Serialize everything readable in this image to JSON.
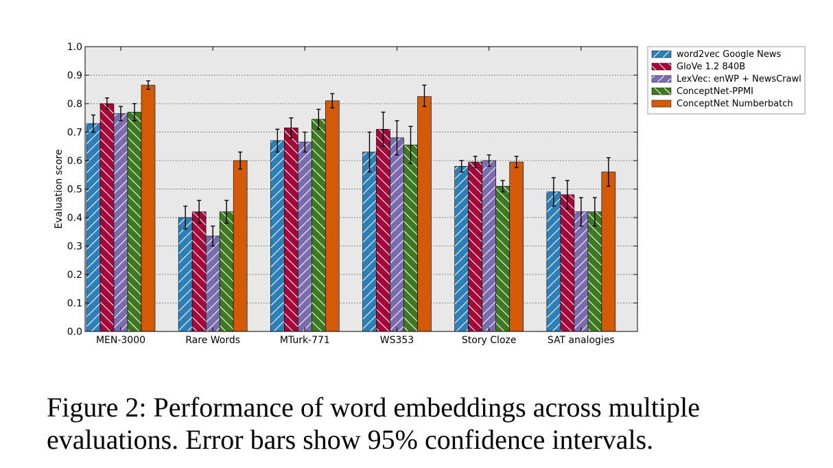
{
  "chart_data": {
    "type": "bar",
    "title": "",
    "xlabel": "",
    "ylabel": "Evaluation score",
    "ylim": [
      0,
      1.0
    ],
    "yticks": [
      "0.0",
      "0.1",
      "0.2",
      "0.3",
      "0.4",
      "0.5",
      "0.6",
      "0.7",
      "0.8",
      "0.9",
      "1.0"
    ],
    "grid": "horizontal dotted",
    "legend_position": "right, outside plot",
    "categories": [
      "MEN-3000",
      "Rare Words",
      "MTurk-771",
      "WS353",
      "Story Cloze",
      "SAT analogies"
    ],
    "series": [
      {
        "name": "word2vec Google News",
        "color": "#2c7fb8",
        "hatch": "/",
        "values": [
          0.73,
          0.4,
          0.67,
          0.63,
          0.58,
          0.49
        ],
        "ci": [
          [
            0.7,
            0.76
          ],
          [
            0.36,
            0.44
          ],
          [
            0.63,
            0.71
          ],
          [
            0.56,
            0.7
          ],
          [
            0.56,
            0.6
          ],
          [
            0.44,
            0.54
          ]
        ]
      },
      {
        "name": "GloVe 1.2 840B",
        "color": "#a6053a",
        "hatch": "\\",
        "values": [
          0.8,
          0.42,
          0.715,
          0.71,
          0.595,
          0.48
        ],
        "ci": [
          [
            0.78,
            0.82
          ],
          [
            0.38,
            0.46
          ],
          [
            0.68,
            0.75
          ],
          [
            0.65,
            0.77
          ],
          [
            0.575,
            0.615
          ],
          [
            0.43,
            0.53
          ]
        ]
      },
      {
        "name": "LexVec: enWP + NewsCrawl",
        "color": "#7b6bb0",
        "hatch": "//",
        "values": [
          0.765,
          0.335,
          0.665,
          0.68,
          0.6,
          0.42
        ],
        "ci": [
          [
            0.74,
            0.79
          ],
          [
            0.3,
            0.37
          ],
          [
            0.63,
            0.7
          ],
          [
            0.62,
            0.74
          ],
          [
            0.58,
            0.62
          ],
          [
            0.37,
            0.47
          ]
        ]
      },
      {
        "name": "ConceptNet-PPMI",
        "color": "#3d7a1f",
        "hatch": "\\\\",
        "values": [
          0.77,
          0.42,
          0.745,
          0.655,
          0.51,
          0.42
        ],
        "ci": [
          [
            0.74,
            0.8
          ],
          [
            0.38,
            0.46
          ],
          [
            0.71,
            0.78
          ],
          [
            0.59,
            0.72
          ],
          [
            0.49,
            0.53
          ],
          [
            0.37,
            0.47
          ]
        ]
      },
      {
        "name": "ConceptNet Numberbatch",
        "color": "#d45a07",
        "hatch": "",
        "values": [
          0.865,
          0.6,
          0.81,
          0.825,
          0.595,
          0.56
        ],
        "ci": [
          [
            0.85,
            0.88
          ],
          [
            0.57,
            0.63
          ],
          [
            0.785,
            0.835
          ],
          [
            0.79,
            0.865
          ],
          [
            0.575,
            0.615
          ],
          [
            0.51,
            0.61
          ]
        ]
      }
    ]
  },
  "caption": {
    "line1": "Figure 2:  Performance of word embeddings across multiple",
    "line2": "evaluations. Error bars show 95% confidence intervals."
  }
}
